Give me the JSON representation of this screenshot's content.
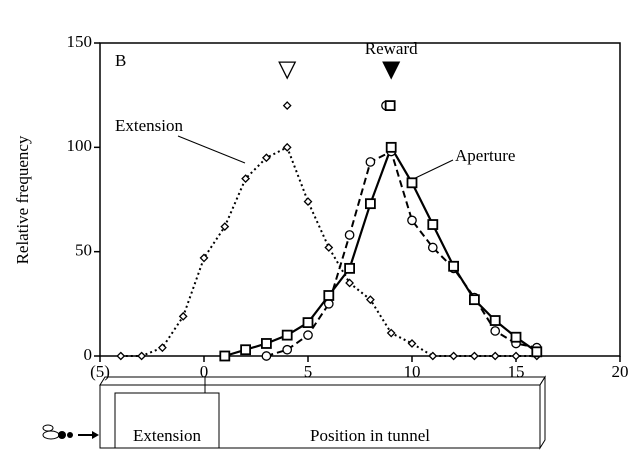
{
  "chart_data": {
    "type": "line",
    "panel": "B",
    "ylabel": "Relative frequency",
    "xlim": [
      -5,
      20
    ],
    "xticks": [
      {
        "value": -5,
        "label": "(5)"
      },
      0,
      5,
      10,
      15,
      20
    ],
    "ylim": [
      0,
      150
    ],
    "yticks": [
      0,
      50,
      100,
      150
    ],
    "series": [
      {
        "name": "Extension",
        "color": "#000000",
        "dash": "dotted",
        "marker": "diamond",
        "x": [
          -4,
          -3,
          -2,
          -1,
          0,
          1,
          2,
          3,
          4,
          5,
          6,
          7,
          8,
          9,
          10,
          11,
          12,
          13,
          14,
          15,
          16
        ],
        "values": [
          0,
          0,
          4,
          19,
          47,
          62,
          85,
          95,
          100,
          74,
          52,
          35,
          27,
          11,
          6,
          0,
          0,
          0,
          0,
          0,
          0
        ],
        "summary": {
          "x": 4,
          "y": 120
        }
      },
      {
        "color": "#000000",
        "dash": "dashed",
        "marker": "circle",
        "x": [
          3,
          4,
          5,
          6,
          7,
          8,
          9,
          10,
          11,
          12,
          13,
          14,
          15,
          16
        ],
        "values": [
          0,
          3,
          10,
          25,
          58,
          93,
          98,
          65,
          52,
          42,
          28,
          12,
          6,
          4
        ],
        "summary": {
          "x": 8.75,
          "y": 120
        }
      },
      {
        "name": "Aperture",
        "color": "#000000",
        "dash": "solid",
        "marker": "square",
        "x": [
          1,
          2,
          3,
          4,
          5,
          6,
          7,
          8,
          9,
          10,
          11,
          12,
          13,
          14,
          15,
          16
        ],
        "values": [
          0,
          3,
          6,
          10,
          16,
          29,
          42,
          73,
          100,
          83,
          63,
          43,
          27,
          17,
          9,
          2
        ],
        "summary": {
          "x": 8.95,
          "y": 120
        }
      }
    ],
    "triangles": [
      {
        "x": 4,
        "y": 137,
        "filled": false
      },
      {
        "x": 9,
        "y": 137,
        "filled": true,
        "label": "Reward"
      }
    ],
    "tunnel": {
      "entrance": "Extension",
      "label": "Position in tunnel"
    }
  }
}
